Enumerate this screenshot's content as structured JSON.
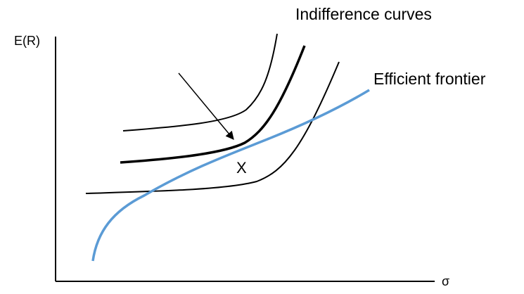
{
  "labels": {
    "y_axis": "E(R)",
    "x_axis": "σ",
    "indifference_curves": "Indifference curves",
    "efficient_frontier": "Efficient frontier",
    "point": "X"
  },
  "colors": {
    "frontier": "#5b9bd5",
    "curves": "#000000",
    "axes": "#000000"
  }
}
